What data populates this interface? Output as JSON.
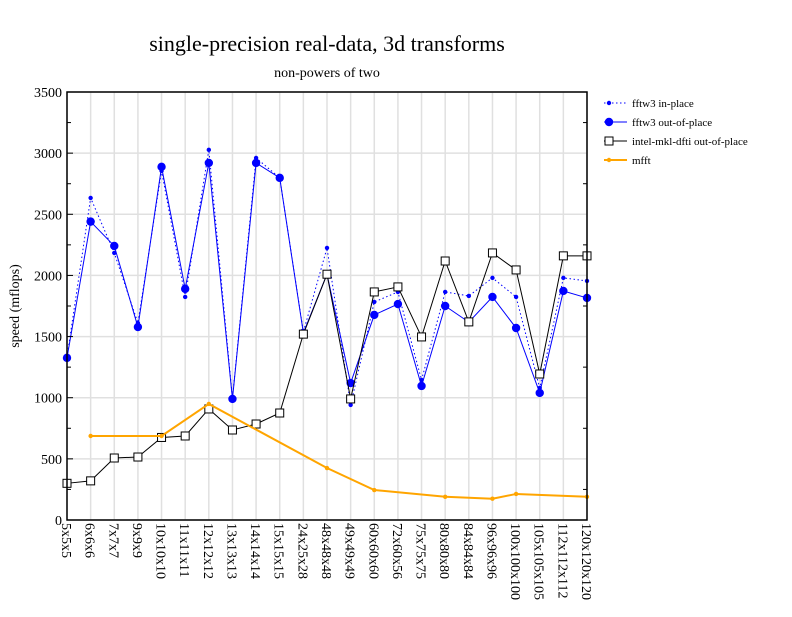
{
  "chart_data": {
    "type": "line",
    "title": "single-precision real-data, 3d transforms",
    "subtitle": "non-powers of two",
    "xlabel": "",
    "ylabel": "speed (mflops)",
    "ylim": [
      0,
      3500
    ],
    "yticks": [
      0,
      500,
      1000,
      1500,
      2000,
      2500,
      3000,
      3500
    ],
    "grid": true,
    "legend_position": "right",
    "categories": [
      "5x5x5",
      "6x6x6",
      "7x7x7",
      "9x9x9",
      "10x10x10",
      "11x11x11",
      "12x12x12",
      "13x13x13",
      "14x14x14",
      "15x15x15",
      "24x25x28",
      "48x48x48",
      "49x49x49",
      "60x60x60",
      "72x60x56",
      "75x75x75",
      "80x80x80",
      "84x84x84",
      "96x96x96",
      "100x100x100",
      "105x105x105",
      "112x112x112",
      "120x120x120"
    ],
    "series": [
      {
        "name": "fftw3 in-place",
        "color": "#0000ff",
        "style": "dotted",
        "marker": "small-dot",
        "values": [
          1333,
          2634,
          2184,
          1611,
          2855,
          1824,
          3027,
          997,
          2961,
          2798,
          1538,
          2225,
          941,
          1783,
          1865,
          1145,
          1865,
          1832,
          1980,
          1824,
          1080,
          1980,
          1955
        ]
      },
      {
        "name": "fftw3 out-of-place",
        "color": "#0000ff",
        "style": "solid",
        "marker": "big-dot",
        "values": [
          1326,
          2440,
          2241,
          1578,
          2888,
          1890,
          2920,
          990,
          2920,
          2798,
          1530,
          2010,
          1120,
          1677,
          1766,
          1096,
          1750,
          1618,
          1824,
          1570,
          1039,
          1873,
          1816
        ]
      },
      {
        "name": "intel-mkl-dfti out-of-place",
        "color": "#000000",
        "style": "solid",
        "marker": "square",
        "values": [
          300,
          320,
          507,
          515,
          675,
          687,
          908,
          736,
          785,
          875,
          1520,
          2010,
          990,
          1865,
          1906,
          1497,
          2118,
          1620,
          2184,
          2045,
          1194,
          2160,
          2160
        ]
      },
      {
        "name": "mfft",
        "color": "#ffa500",
        "style": "solid",
        "marker": "small-dot",
        "values": [
          null,
          687,
          null,
          null,
          687,
          null,
          949,
          null,
          null,
          null,
          null,
          425,
          null,
          245,
          null,
          null,
          190,
          null,
          174,
          213,
          null,
          null,
          190
        ]
      }
    ]
  }
}
